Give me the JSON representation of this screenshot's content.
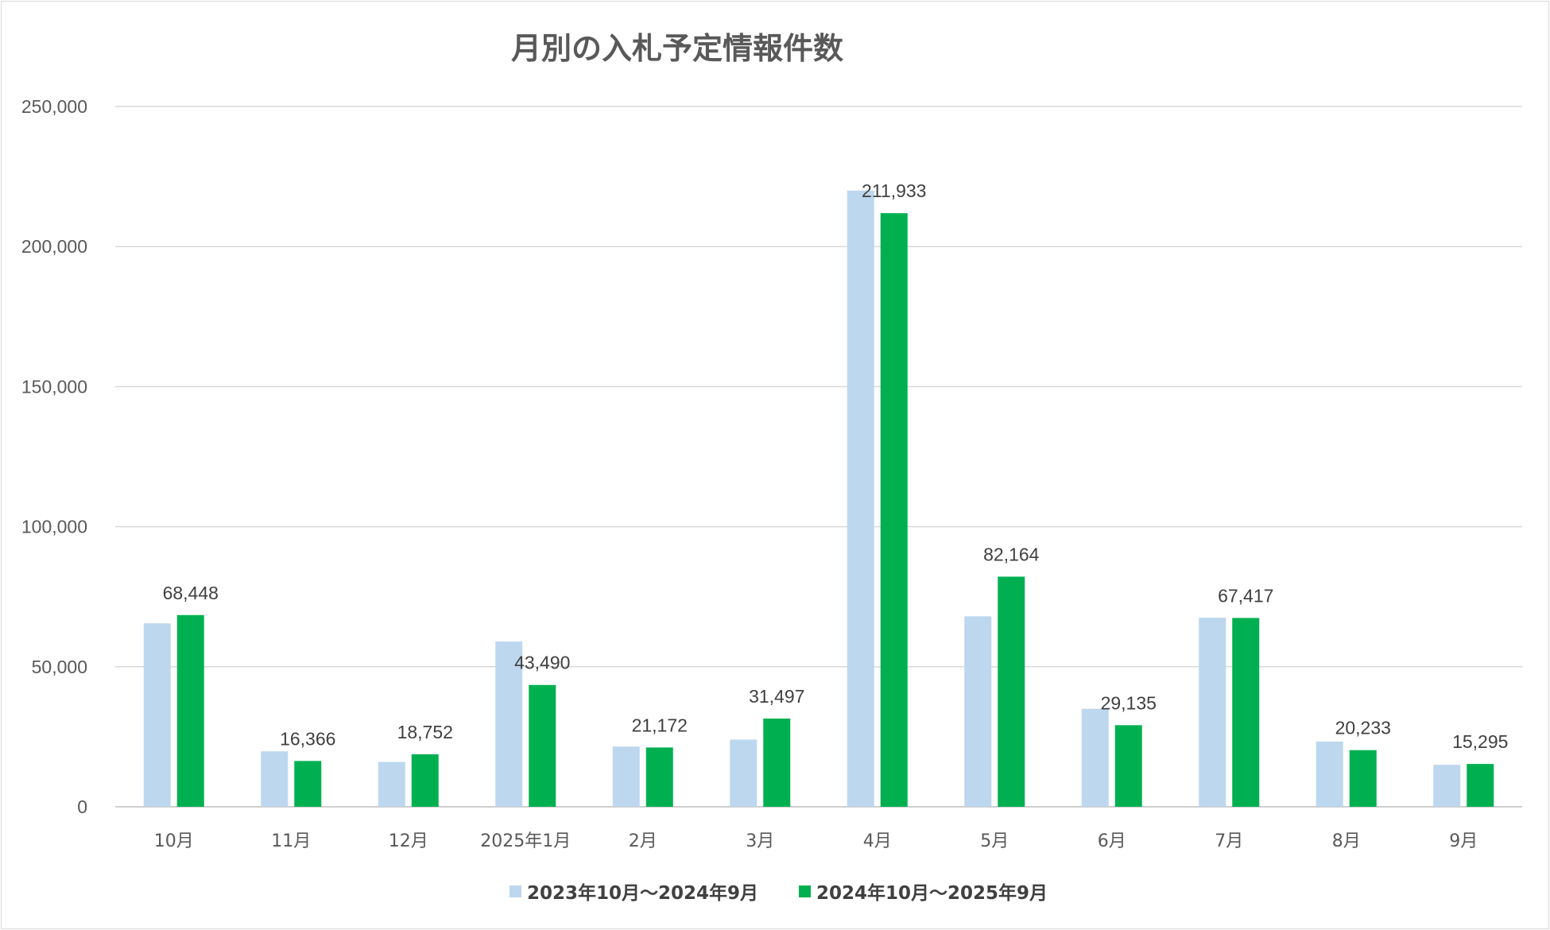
{
  "chart_data": {
    "type": "bar",
    "title": "月別の入札予定情報件数",
    "categories": [
      "10月",
      "11月",
      "12月",
      "2025年1月",
      "2月",
      "3月",
      "4月",
      "5月",
      "6月",
      "7月",
      "8月",
      "9月"
    ],
    "series": [
      {
        "name": "2023年10月～2024年9月",
        "color": "#bdd7ee",
        "values": [
          65500,
          19800,
          16000,
          59000,
          21500,
          24000,
          220000,
          68000,
          35000,
          67500,
          23300,
          15000
        ]
      },
      {
        "name": "2024年10月～2025年9月",
        "color": "#00b050",
        "values": [
          68448,
          16366,
          18752,
          43490,
          21172,
          31497,
          211933,
          82164,
          29135,
          67417,
          20233,
          15295
        ],
        "data_labels": [
          "68,448",
          "16,366",
          "18,752",
          "43,490",
          "21,172",
          "31,497",
          "211,933",
          "82,164",
          "29,135",
          "67,417",
          "20,233",
          "15,295"
        ]
      }
    ],
    "ylim": [
      0,
      250000
    ],
    "y_ticks": [
      0,
      50000,
      100000,
      150000,
      200000,
      250000
    ],
    "y_tick_labels": [
      "0",
      "50,000",
      "100,000",
      "150,000",
      "200,000",
      "250,000"
    ],
    "grid": true,
    "legend_position": "bottom"
  }
}
